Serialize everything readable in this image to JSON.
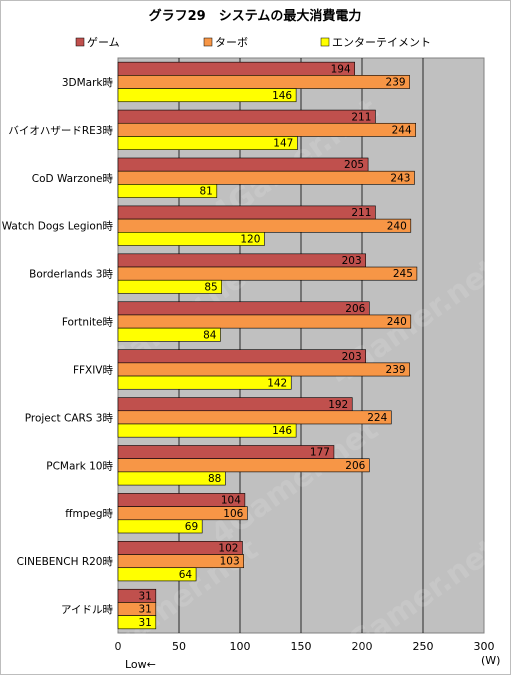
{
  "chart_data": {
    "type": "bar",
    "orientation": "horizontal",
    "title": "グラフ29　システムの最大消費電力",
    "unit": "(W)",
    "axis_note": "Low←",
    "xlim": [
      0,
      300
    ],
    "ticks": [
      0,
      50,
      100,
      150,
      200,
      250,
      300
    ],
    "grid": true,
    "legend_position": "top",
    "categories": [
      "3DMark時",
      "バイオハザードRE3時",
      "CoD Warzone時",
      "Watch Dogs Legion時",
      "Borderlands 3時",
      "Fortnite時",
      "FFXIV時",
      "Project CARS 3時",
      "PCMark 10時",
      "ffmpeg時",
      "CINEBENCH R20時",
      "アイドル時"
    ],
    "series": [
      {
        "name": "ゲーム",
        "color": "#c0504d",
        "values": [
          194,
          211,
          205,
          211,
          203,
          206,
          203,
          192,
          177,
          104,
          102,
          31
        ]
      },
      {
        "name": "ターボ",
        "color": "#f79646",
        "values": [
          239,
          244,
          243,
          240,
          245,
          240,
          239,
          224,
          206,
          106,
          103,
          31
        ]
      },
      {
        "name": "エンターテイメント",
        "color": "#ffff00",
        "values": [
          146,
          147,
          81,
          120,
          85,
          84,
          142,
          146,
          88,
          69,
          64,
          31
        ]
      }
    ],
    "watermark": "4Gamer.net"
  }
}
